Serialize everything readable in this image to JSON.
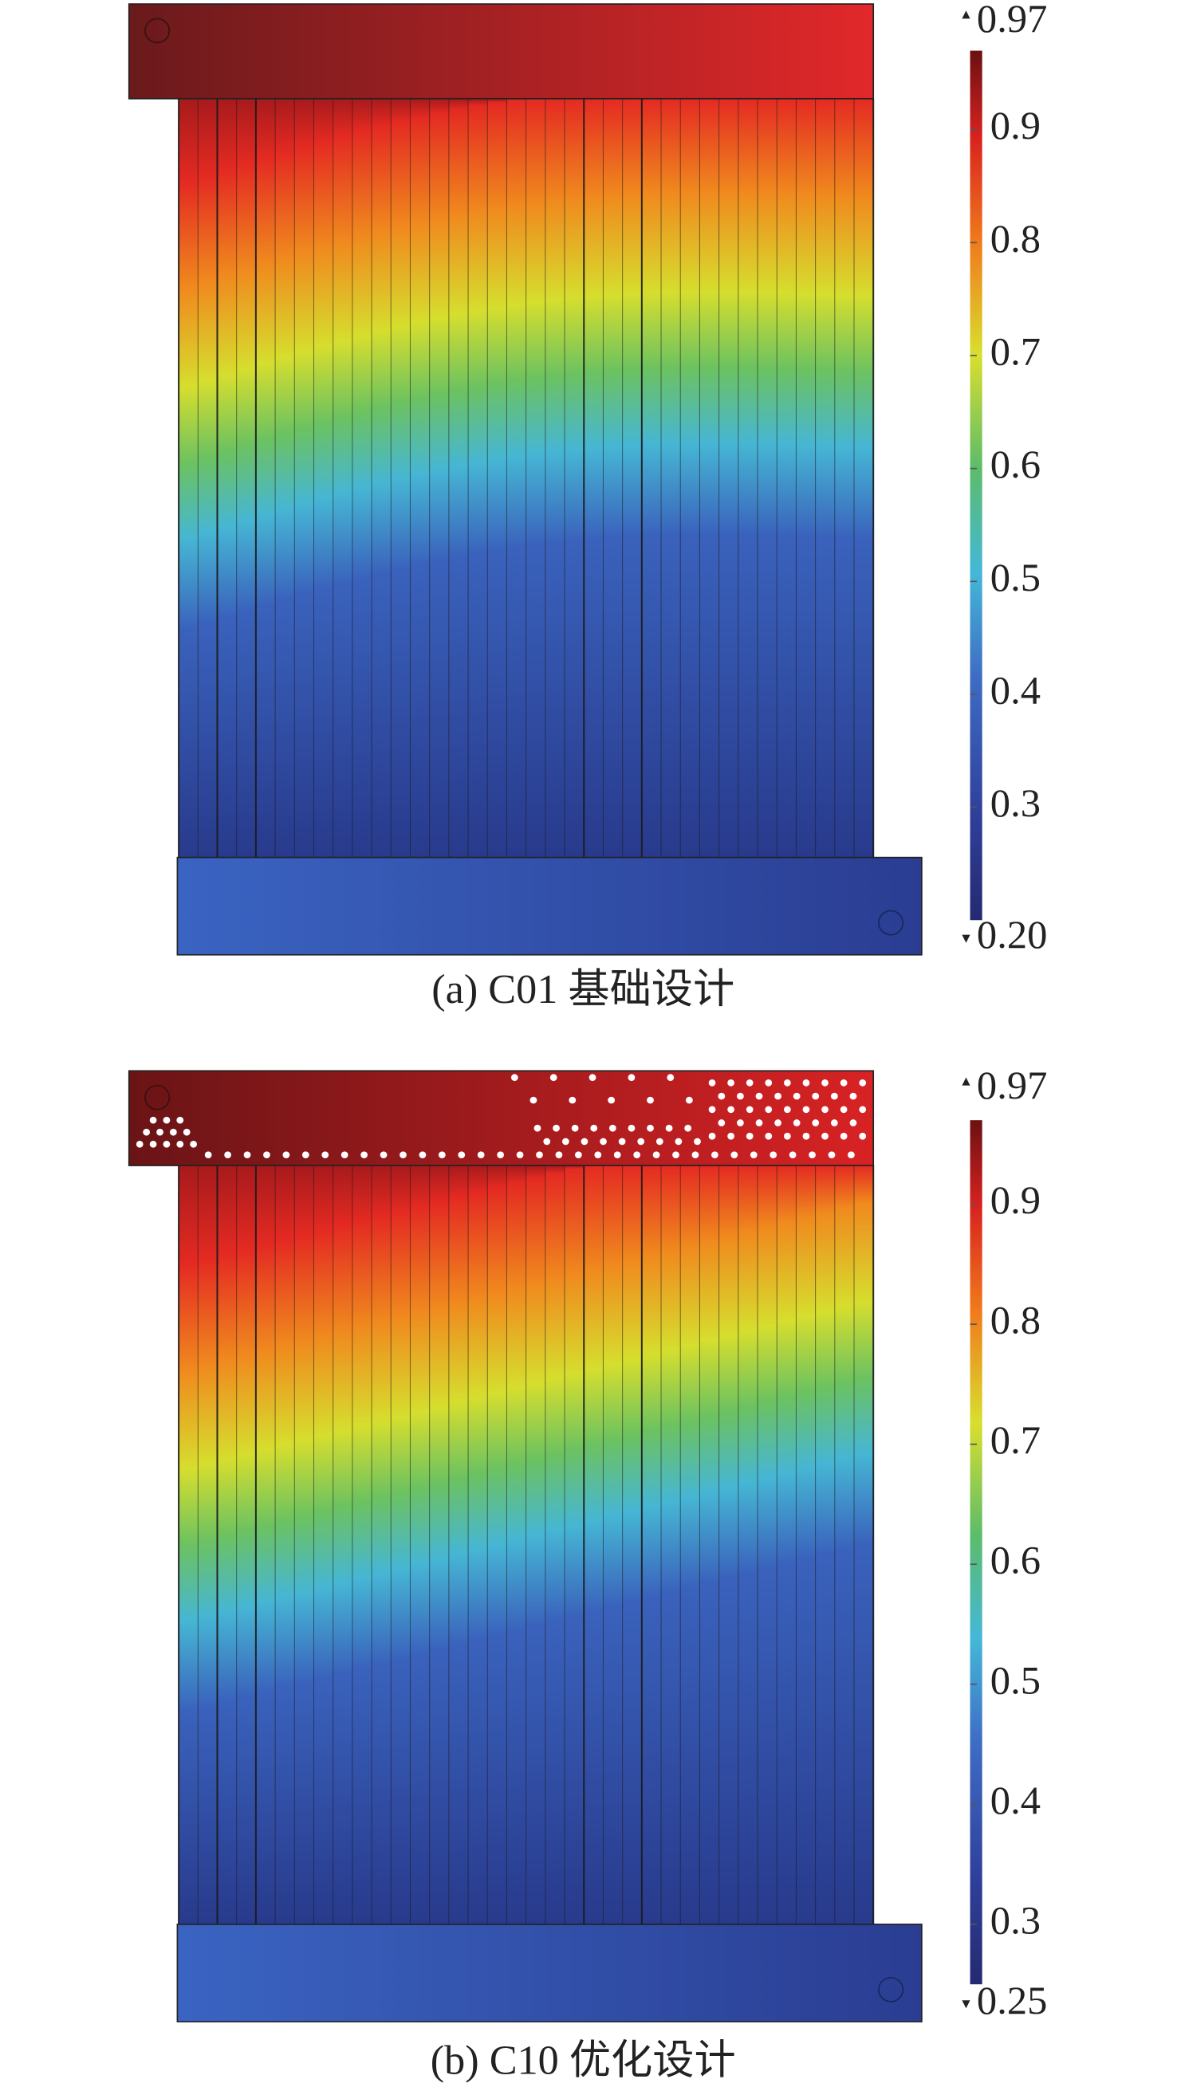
{
  "chart_data": [
    {
      "type": "heatmap",
      "caption": "(a) C01 基础设计",
      "colorbar": {
        "zlim": [
          {
            "value": 0.2,
            "label": "0.20"
          },
          0.97
        ],
        "ticks": [
          0.3,
          0.4,
          0.5,
          0.6,
          0.7,
          0.8,
          0.9
        ]
      }
    },
    {
      "type": "heatmap",
      "caption": "(b) C10 优化设计",
      "colorbar": {
        "zlim": [
          0.25,
          0.97
        ],
        "ticks": [
          0.3,
          0.4,
          0.5,
          0.6,
          0.7,
          0.8,
          0.9
        ]
      }
    }
  ]
}
